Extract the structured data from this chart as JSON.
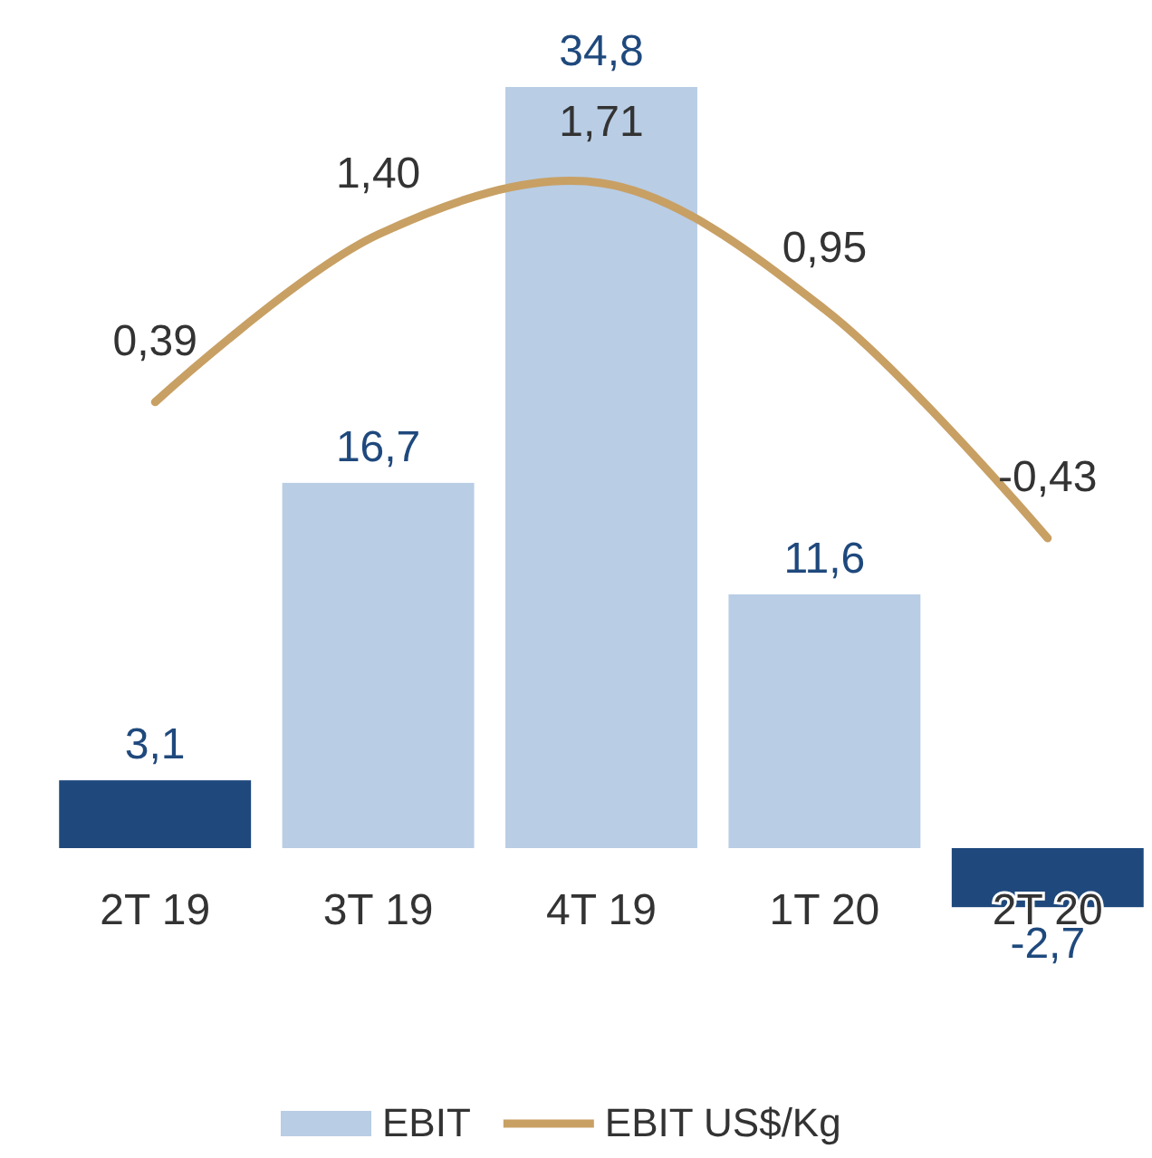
{
  "chart_data": {
    "type": "bar",
    "categories": [
      "2T 19",
      "3T 19",
      "4T 19",
      "1T 20",
      "2T 20"
    ],
    "series": [
      {
        "name": "EBIT",
        "color": "#b9cde5",
        "colors": [
          "#1f497d",
          "#b9cde5",
          "#b9cde5",
          "#b9cde5",
          "#1f497d"
        ],
        "values": [
          3.1,
          16.7,
          34.8,
          11.6,
          -2.7
        ],
        "value_labels": [
          "3,1",
          "16,7",
          "34,8",
          "11,6",
          "-2,7"
        ]
      },
      {
        "name": "EBIT US$/Kg",
        "type": "line",
        "axis": "y2",
        "color": "#c8a064",
        "values": [
          0.39,
          1.4,
          1.71,
          0.95,
          -0.43
        ],
        "value_labels": [
          "0,39",
          "1,40",
          "1,71",
          "0,95",
          "-0,43"
        ]
      }
    ],
    "tick_labels": "x",
    "legend": "bottom",
    "marker": "none"
  }
}
